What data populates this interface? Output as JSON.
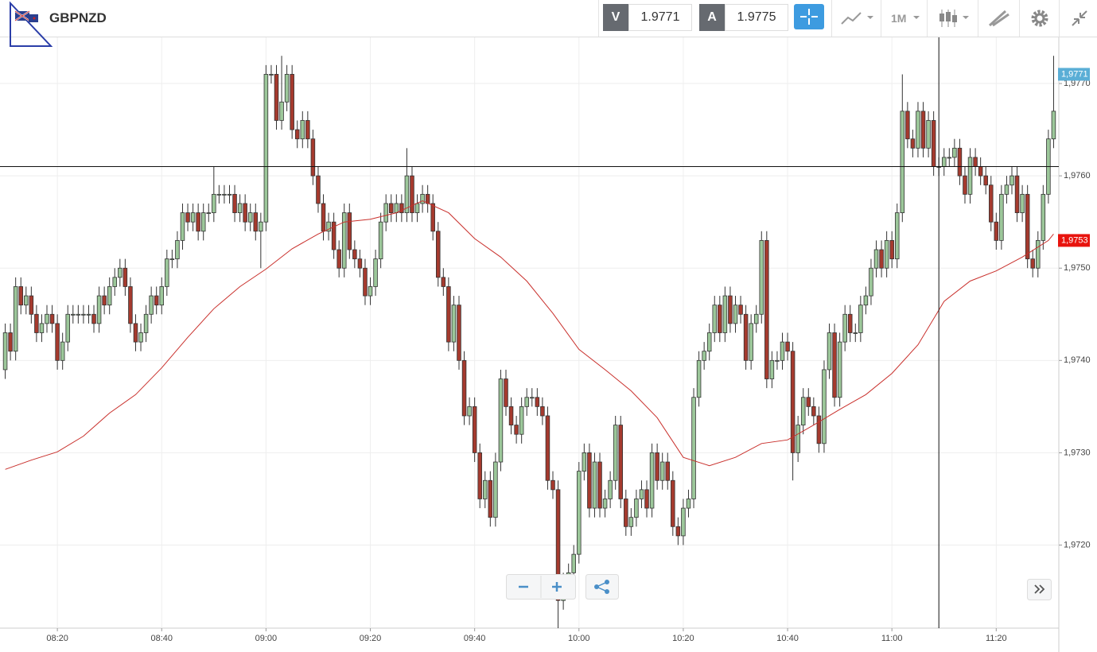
{
  "toolbar": {
    "symbol": "GBPNZD",
    "bid_label": "V",
    "bid": 1.9771,
    "ask_label": "A",
    "ask": 1.9775,
    "interval": "1M"
  },
  "chart_data": {
    "type": "candlestick",
    "x": [
      "08:10",
      "08:11",
      "08:12",
      "08:13",
      "08:14",
      "08:15",
      "08:16",
      "08:17",
      "08:18",
      "08:19",
      "08:20",
      "08:21",
      "08:22",
      "08:23",
      "08:24",
      "08:25",
      "08:26",
      "08:27",
      "08:28",
      "08:29",
      "08:30",
      "08:31",
      "08:32",
      "08:33",
      "08:34",
      "08:35",
      "08:36",
      "08:37",
      "08:38",
      "08:39",
      "08:40",
      "08:41",
      "08:42",
      "08:43",
      "08:44",
      "08:45",
      "08:46",
      "08:47",
      "08:48",
      "08:49",
      "08:50",
      "08:51",
      "08:52",
      "08:53",
      "08:54",
      "08:55",
      "08:56",
      "08:57",
      "08:58",
      "08:59",
      "09:00",
      "09:01",
      "09:02",
      "09:03",
      "09:04",
      "09:05",
      "09:06",
      "09:07",
      "09:08",
      "09:09",
      "09:10",
      "09:11",
      "09:12",
      "09:13",
      "09:14",
      "09:15",
      "09:16",
      "09:17",
      "09:18",
      "09:19",
      "09:20",
      "09:21",
      "09:22",
      "09:23",
      "09:24",
      "09:25",
      "09:26",
      "09:27",
      "09:28",
      "09:29",
      "09:30",
      "09:31",
      "09:32",
      "09:33",
      "09:34",
      "09:35",
      "09:36",
      "09:37",
      "09:38",
      "09:39",
      "09:40",
      "09:41",
      "09:42",
      "09:43",
      "09:44",
      "09:45",
      "09:46",
      "09:47",
      "09:48",
      "09:49",
      "09:50",
      "09:51",
      "09:52",
      "09:53",
      "09:54",
      "09:55",
      "09:56",
      "09:57",
      "09:58",
      "09:59",
      "10:00",
      "10:01",
      "10:02",
      "10:03",
      "10:04",
      "10:05",
      "10:06",
      "10:07",
      "10:08",
      "10:09",
      "10:10",
      "10:11",
      "10:12",
      "10:13",
      "10:14",
      "10:15",
      "10:16",
      "10:17",
      "10:18",
      "10:19",
      "10:20",
      "10:21",
      "10:22",
      "10:23",
      "10:24",
      "10:25",
      "10:26",
      "10:27",
      "10:28",
      "10:29",
      "10:30",
      "10:31",
      "10:32",
      "10:33",
      "10:34",
      "10:35",
      "10:36",
      "10:37",
      "10:38",
      "10:39",
      "10:40",
      "10:41",
      "10:42",
      "10:43",
      "10:44",
      "10:45",
      "10:46",
      "10:47",
      "10:48",
      "10:49",
      "10:50",
      "10:51",
      "10:52",
      "10:53",
      "10:54",
      "10:55",
      "10:56",
      "10:57",
      "10:58",
      "10:59",
      "11:00",
      "11:01",
      "11:02",
      "11:03",
      "11:04",
      "11:05",
      "11:06",
      "11:07",
      "11:08",
      "11:09",
      "11:10",
      "11:11",
      "11:12",
      "11:13",
      "11:14",
      "11:15",
      "11:16",
      "11:17",
      "11:18",
      "11:19",
      "11:20",
      "11:21",
      "11:22",
      "11:23",
      "11:24",
      "11:25",
      "11:26",
      "11:27",
      "11:28",
      "11:29",
      "11:30",
      "11:31"
    ],
    "open": [
      1.9739,
      1.9743,
      1.9741,
      1.9748,
      1.9746,
      1.9747,
      1.9745,
      1.9743,
      1.9744,
      1.9745,
      1.9744,
      1.974,
      1.9742,
      1.9745,
      1.9745,
      1.9745,
      1.9745,
      1.9745,
      1.9744,
      1.9747,
      1.9746,
      1.9748,
      1.9749,
      1.975,
      1.9748,
      1.9744,
      1.9742,
      1.9743,
      1.9745,
      1.9747,
      1.9746,
      1.9748,
      1.9751,
      1.9751,
      1.9753,
      1.9756,
      1.9755,
      1.9756,
      1.9754,
      1.9756,
      1.9756,
      1.9758,
      1.9758,
      1.9758,
      1.9758,
      1.9756,
      1.9757,
      1.9755,
      1.9756,
      1.9754,
      1.9755,
      1.9771,
      1.9771,
      1.9766,
      1.9768,
      1.9771,
      1.9765,
      1.9764,
      1.9766,
      1.9764,
      1.976,
      1.9757,
      1.9754,
      1.9755,
      1.9752,
      1.975,
      1.9756,
      1.9752,
      1.9751,
      1.975,
      1.9747,
      1.9748,
      1.9751,
      1.9755,
      1.9757,
      1.9756,
      1.9757,
      1.9756,
      1.976,
      1.9756,
      1.9757,
      1.9758,
      1.9757,
      1.9754,
      1.9749,
      1.9748,
      1.9742,
      1.9746,
      1.974,
      1.9734,
      1.9735,
      1.973,
      1.9725,
      1.9727,
      1.9723,
      1.9729,
      1.9738,
      1.9735,
      1.9733,
      1.9732,
      1.9735,
      1.9736,
      1.9736,
      1.9735,
      1.9734,
      1.9727,
      1.9726,
      1.9714,
      1.9716,
      1.9717,
      1.9719,
      1.9728,
      1.973,
      1.9724,
      1.9729,
      1.9724,
      1.9725,
      1.9727,
      1.9733,
      1.9725,
      1.9722,
      1.9723,
      1.9725,
      1.9726,
      1.9724,
      1.973,
      1.9727,
      1.9729,
      1.9727,
      1.9722,
      1.9721,
      1.9724,
      1.9725,
      1.9736,
      1.974,
      1.9741,
      1.9743,
      1.9746,
      1.9743,
      1.9747,
      1.9744,
      1.9746,
      1.9745,
      1.974,
      1.9744,
      1.9745,
      1.9753,
      1.9738,
      1.974,
      1.974,
      1.9742,
      1.9741,
      1.973,
      1.9733,
      1.9736,
      1.9735,
      1.9734,
      1.9731,
      1.9739,
      1.9743,
      1.9736,
      1.9742,
      1.9745,
      1.9743,
      1.9743,
      1.9746,
      1.9747,
      1.975,
      1.9752,
      1.975,
      1.9753,
      1.9751,
      1.9756,
      1.9767,
      1.9764,
      1.9763,
      1.9767,
      1.9763,
      1.9766,
      1.9761,
      1.9761,
      1.9762,
      1.9762,
      1.9763,
      1.976,
      1.9758,
      1.9762,
      1.9761,
      1.976,
      1.9759,
      1.9755,
      1.9753,
      1.9758,
      1.9759,
      1.976,
      1.9756,
      1.9758,
      1.9751,
      1.975,
      1.9753,
      1.9758,
      1.9764
    ],
    "high": [
      1.9744,
      1.9744,
      1.9749,
      1.9749,
      1.9748,
      1.9748,
      1.9746,
      1.9745,
      1.9746,
      1.9746,
      1.9745,
      1.9743,
      1.9746,
      1.9746,
      1.9746,
      1.9746,
      1.9746,
      1.9746,
      1.9748,
      1.9748,
      1.9749,
      1.975,
      1.9751,
      1.9751,
      1.9749,
      1.9745,
      1.9744,
      1.9746,
      1.9748,
      1.9748,
      1.9749,
      1.9752,
      1.9752,
      1.9754,
      1.9757,
      1.9757,
      1.9757,
      1.9757,
      1.9757,
      1.9757,
      1.9761,
      1.9759,
      1.9759,
      1.9759,
      1.9759,
      1.9758,
      1.9758,
      1.9757,
      1.9757,
      1.9756,
      1.9772,
      1.9772,
      1.9772,
      1.9773,
      1.9772,
      1.9772,
      1.9766,
      1.9767,
      1.9767,
      1.9765,
      1.9761,
      1.9758,
      1.9756,
      1.9756,
      1.9753,
      1.9757,
      1.9757,
      1.9753,
      1.9752,
      1.9751,
      1.9749,
      1.9752,
      1.9756,
      1.9758,
      1.9758,
      1.9758,
      1.9758,
      1.9763,
      1.9761,
      1.9758,
      1.9759,
      1.9759,
      1.9758,
      1.9755,
      1.975,
      1.9749,
      1.9747,
      1.9747,
      1.9741,
      1.9736,
      1.9736,
      1.9731,
      1.9728,
      1.9728,
      1.973,
      1.9739,
      1.9739,
      1.9736,
      1.9734,
      1.9736,
      1.9737,
      1.9737,
      1.9737,
      1.9736,
      1.9735,
      1.9728,
      1.9727,
      1.9717,
      1.9718,
      1.972,
      1.9729,
      1.9731,
      1.9731,
      1.973,
      1.973,
      1.9726,
      1.9728,
      1.9734,
      1.9734,
      1.9726,
      1.9724,
      1.9726,
      1.9727,
      1.9727,
      1.9731,
      1.9731,
      1.973,
      1.973,
      1.9728,
      1.9723,
      1.9725,
      1.9726,
      1.9737,
      1.9741,
      1.9742,
      1.9744,
      1.9747,
      1.9747,
      1.9748,
      1.9748,
      1.9747,
      1.9747,
      1.9746,
      1.9745,
      1.9746,
      1.9754,
      1.9754,
      1.9741,
      1.9741,
      1.9743,
      1.9743,
      1.9742,
      1.9734,
      1.9737,
      1.9737,
      1.9736,
      1.9735,
      1.974,
      1.9744,
      1.9744,
      1.9743,
      1.9746,
      1.9746,
      1.9744,
      1.9747,
      1.9748,
      1.9751,
      1.9753,
      1.9753,
      1.9754,
      1.9754,
      1.9757,
      1.9771,
      1.9768,
      1.9765,
      1.9768,
      1.9768,
      1.9767,
      1.9767,
      1.9762,
      1.9763,
      1.9763,
      1.9764,
      1.9764,
      1.9761,
      1.9763,
      1.9763,
      1.9762,
      1.9761,
      1.976,
      1.9756,
      1.9759,
      1.976,
      1.9761,
      1.9761,
      1.9759,
      1.9759,
      1.9752,
      1.9754,
      1.9759,
      1.9765,
      1.9773
    ],
    "low": [
      1.9738,
      1.974,
      1.974,
      1.9745,
      1.9745,
      1.9744,
      1.9742,
      1.9742,
      1.9743,
      1.9743,
      1.9739,
      1.9739,
      1.9741,
      1.9744,
      1.9744,
      1.9744,
      1.9744,
      1.9743,
      1.9743,
      1.9745,
      1.9745,
      1.9747,
      1.9748,
      1.9747,
      1.9743,
      1.9741,
      1.9741,
      1.9742,
      1.9744,
      1.9745,
      1.9745,
      1.9747,
      1.975,
      1.975,
      1.9752,
      1.9754,
      1.9754,
      1.9753,
      1.9753,
      1.9755,
      1.9755,
      1.9757,
      1.9757,
      1.9757,
      1.9755,
      1.9755,
      1.9754,
      1.9754,
      1.9753,
      1.975,
      1.9754,
      1.977,
      1.9765,
      1.9765,
      1.9767,
      1.9764,
      1.9763,
      1.9763,
      1.9763,
      1.9759,
      1.9756,
      1.9753,
      1.9753,
      1.9751,
      1.9749,
      1.9749,
      1.9751,
      1.975,
      1.9749,
      1.9746,
      1.9746,
      1.9747,
      1.975,
      1.9754,
      1.9755,
      1.9755,
      1.9755,
      1.9755,
      1.9755,
      1.9755,
      1.9756,
      1.9756,
      1.9753,
      1.9748,
      1.9747,
      1.9741,
      1.9741,
      1.9739,
      1.9733,
      1.9733,
      1.9729,
      1.9724,
      1.9724,
      1.9722,
      1.9722,
      1.9728,
      1.9734,
      1.9732,
      1.9731,
      1.9731,
      1.9734,
      1.9735,
      1.9734,
      1.9733,
      1.9726,
      1.9725,
      1.9711,
      1.9713,
      1.9715,
      1.9716,
      1.9718,
      1.9727,
      1.9723,
      1.9723,
      1.9723,
      1.9723,
      1.9724,
      1.9726,
      1.9724,
      1.9721,
      1.9721,
      1.9722,
      1.9724,
      1.9723,
      1.9723,
      1.9726,
      1.9726,
      1.9726,
      1.9721,
      1.972,
      1.972,
      1.9723,
      1.9724,
      1.9735,
      1.9739,
      1.974,
      1.9742,
      1.9742,
      1.9742,
      1.9743,
      1.9743,
      1.9744,
      1.9739,
      1.9739,
      1.9743,
      1.9744,
      1.9737,
      1.9737,
      1.9739,
      1.9739,
      1.974,
      1.9727,
      1.9729,
      1.9732,
      1.9734,
      1.9733,
      1.973,
      1.973,
      1.9738,
      1.9735,
      1.9735,
      1.9741,
      1.9742,
      1.9742,
      1.9742,
      1.9745,
      1.9746,
      1.9749,
      1.9749,
      1.9749,
      1.975,
      1.975,
      1.9755,
      1.9763,
      1.9762,
      1.9762,
      1.9762,
      1.9762,
      1.976,
      1.976,
      1.976,
      1.9761,
      1.9761,
      1.9759,
      1.9757,
      1.9757,
      1.976,
      1.9759,
      1.9758,
      1.9754,
      1.9752,
      1.9752,
      1.9757,
      1.9758,
      1.9755,
      1.9755,
      1.975,
      1.9749,
      1.9749,
      1.9752,
      1.9757,
      1.9763
    ],
    "close": [
      1.9743,
      1.9741,
      1.9748,
      1.9746,
      1.9747,
      1.9745,
      1.9743,
      1.9744,
      1.9745,
      1.9744,
      1.974,
      1.9742,
      1.9745,
      1.9745,
      1.9745,
      1.9745,
      1.9745,
      1.9744,
      1.9747,
      1.9746,
      1.9748,
      1.9749,
      1.975,
      1.9748,
      1.9744,
      1.9742,
      1.9743,
      1.9745,
      1.9747,
      1.9746,
      1.9748,
      1.9751,
      1.9751,
      1.9753,
      1.9756,
      1.9755,
      1.9756,
      1.9754,
      1.9756,
      1.9756,
      1.9758,
      1.9758,
      1.9758,
      1.9758,
      1.9756,
      1.9757,
      1.9755,
      1.9756,
      1.9754,
      1.9755,
      1.9771,
      1.9771,
      1.9766,
      1.9768,
      1.9771,
      1.9765,
      1.9764,
      1.9766,
      1.9764,
      1.976,
      1.9757,
      1.9754,
      1.9755,
      1.9752,
      1.975,
      1.9756,
      1.9752,
      1.9751,
      1.975,
      1.9747,
      1.9748,
      1.9751,
      1.9755,
      1.9757,
      1.9756,
      1.9757,
      1.9756,
      1.976,
      1.9756,
      1.9757,
      1.9758,
      1.9757,
      1.9754,
      1.9749,
      1.9748,
      1.9742,
      1.9746,
      1.974,
      1.9734,
      1.9735,
      1.973,
      1.9725,
      1.9727,
      1.9723,
      1.9729,
      1.9738,
      1.9735,
      1.9733,
      1.9732,
      1.9735,
      1.9736,
      1.9736,
      1.9735,
      1.9734,
      1.9727,
      1.9726,
      1.9714,
      1.9716,
      1.9717,
      1.9719,
      1.9728,
      1.973,
      1.9724,
      1.9729,
      1.9724,
      1.9725,
      1.9727,
      1.9733,
      1.9725,
      1.9722,
      1.9723,
      1.9725,
      1.9726,
      1.9724,
      1.973,
      1.9727,
      1.9729,
      1.9727,
      1.9722,
      1.9721,
      1.9724,
      1.9725,
      1.9736,
      1.974,
      1.9741,
      1.9743,
      1.9746,
      1.9743,
      1.9747,
      1.9744,
      1.9746,
      1.9745,
      1.974,
      1.9744,
      1.9745,
      1.9753,
      1.9738,
      1.974,
      1.974,
      1.9742,
      1.9741,
      1.973,
      1.9733,
      1.9736,
      1.9735,
      1.9734,
      1.9731,
      1.9739,
      1.9743,
      1.9736,
      1.9742,
      1.9745,
      1.9743,
      1.9743,
      1.9746,
      1.9747,
      1.975,
      1.9752,
      1.975,
      1.9753,
      1.9751,
      1.9756,
      1.9767,
      1.9764,
      1.9763,
      1.9767,
      1.9763,
      1.9766,
      1.9761,
      1.9761,
      1.9762,
      1.9762,
      1.9763,
      1.976,
      1.9758,
      1.9762,
      1.9761,
      1.976,
      1.9759,
      1.9755,
      1.9753,
      1.9758,
      1.9759,
      1.976,
      1.9756,
      1.9758,
      1.9751,
      1.975,
      1.9753,
      1.9758,
      1.9764,
      1.9767
    ],
    "up_color": "#9cc79a",
    "down_color": "#a53a2e",
    "moving_average": {
      "color": "#c9302c",
      "x": [
        "08:10",
        "08:15",
        "08:20",
        "08:25",
        "08:30",
        "08:35",
        "08:40",
        "08:45",
        "08:50",
        "08:55",
        "09:00",
        "09:05",
        "09:10",
        "09:15",
        "09:20",
        "09:25",
        "09:30",
        "09:35",
        "09:40",
        "09:45",
        "09:50",
        "09:55",
        "10:00",
        "10:05",
        "10:10",
        "10:15",
        "10:20",
        "10:25",
        "10:30",
        "10:35",
        "10:40",
        "10:45",
        "10:50",
        "10:55",
        "11:00",
        "11:05",
        "11:10",
        "11:15",
        "11:20",
        "11:25",
        "11:30",
        "11:31"
      ],
      "values": [
        1.97282,
        1.97292,
        1.97301,
        1.97318,
        1.97343,
        1.97363,
        1.97392,
        1.97425,
        1.97456,
        1.9748,
        1.97499,
        1.97521,
        1.97537,
        1.9755,
        1.97553,
        1.9756,
        1.97573,
        1.9756,
        1.97532,
        1.97512,
        1.97486,
        1.97451,
        1.97412,
        1.9739,
        1.97367,
        1.97338,
        1.97295,
        1.97286,
        1.97295,
        1.9731,
        1.97314,
        1.9733,
        1.97347,
        1.97363,
        1.97386,
        1.97417,
        1.97464,
        1.97486,
        1.97497,
        1.97512,
        1.9753,
        1.97537
      ]
    },
    "xlim": [
      "08:09",
      "11:32"
    ],
    "xticks": [
      "08:20",
      "08:40",
      "09:00",
      "09:20",
      "09:40",
      "10:00",
      "10:20",
      "10:40",
      "11:00",
      "11:20"
    ],
    "ylim": [
      1.9711,
      1.9775
    ],
    "yticks": [
      {
        "value": 1.972,
        "label": "1,9720"
      },
      {
        "value": 1.973,
        "label": "1,9730"
      },
      {
        "value": 1.974,
        "label": "1,9740"
      },
      {
        "value": 1.975,
        "label": "1,9750"
      },
      {
        "value": 1.976,
        "label": "1,9760"
      },
      {
        "value": 1.977,
        "label": "1,9770"
      }
    ],
    "grid": true,
    "price_markers": [
      {
        "value": 1.9771,
        "label": "1,9771",
        "color": "#5aaed6"
      },
      {
        "value": 1.9753,
        "label": "1,9753",
        "color": "#e8140e"
      }
    ],
    "crosshair": {
      "x": "11:09",
      "y": 1.9761
    }
  }
}
